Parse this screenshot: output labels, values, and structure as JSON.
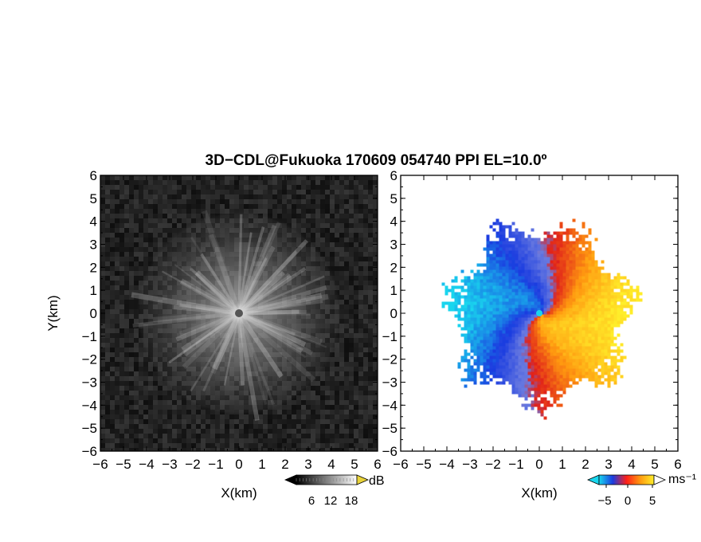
{
  "title": "3D−CDL@Fukuoka 170609 054740 PPI EL=10.0º",
  "left_panel": {
    "ylabel": "Y(km)",
    "xlabel": "X(km)",
    "colorbar": {
      "unit": "dB",
      "ticks": [
        "6",
        "12",
        "18"
      ],
      "colormap": "grayscale"
    }
  },
  "right_panel": {
    "xlabel": "X(km)",
    "colorbar": {
      "unit": "ms⁻¹",
      "ticks": [
        "−5",
        "0",
        "5"
      ],
      "colormap": "cyan-blue-red-yellow"
    }
  },
  "chart_data": [
    {
      "type": "heatmap",
      "panel": "left",
      "quantity": "echo intensity",
      "x_range": [
        -6,
        6
      ],
      "y_range": [
        -6,
        6
      ],
      "xticks": [
        -6,
        -5,
        -4,
        -3,
        -2,
        -1,
        0,
        1,
        2,
        3,
        4,
        5,
        6
      ],
      "yticks": [
        -6,
        -5,
        -4,
        -3,
        -2,
        -1,
        0,
        1,
        2,
        3,
        4,
        5,
        6
      ],
      "xlabel": "X(km)",
      "ylabel": "Y(km)",
      "colorbar_range_db": [
        6,
        18
      ],
      "echo_radius_km": 4.5,
      "center_km": [
        0,
        0
      ]
    },
    {
      "type": "heatmap",
      "panel": "right",
      "quantity": "Doppler velocity",
      "x_range": [
        -6,
        6
      ],
      "y_range": [
        -6,
        6
      ],
      "xticks": [
        -6,
        -5,
        -4,
        -3,
        -2,
        -1,
        0,
        1,
        2,
        3,
        4,
        5,
        6
      ],
      "yticks": [
        -6,
        -5,
        -4,
        -3,
        -2,
        -1,
        0,
        1,
        2,
        3,
        4,
        5,
        6
      ],
      "xlabel": "X(km)",
      "colorbar_range": [
        -5,
        5
      ],
      "colorbar_unit": "ms⁻¹",
      "echo_radius_km": 4.5,
      "negative_side": "west",
      "positive_side": "east"
    }
  ],
  "colors": {
    "neg_strong": "#1a3ce0",
    "neg_weak": "#19d6ee",
    "zero": "#6a7be0",
    "pos_weak": "#e0201a",
    "pos_strong": "#ffee2a"
  }
}
